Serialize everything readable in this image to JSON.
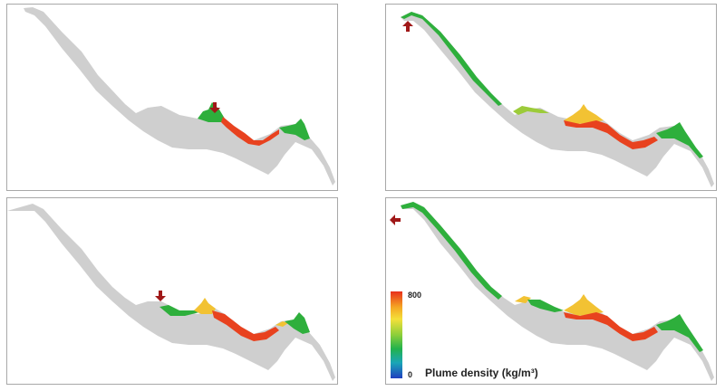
{
  "colors": {
    "terrain": "#cfcfcf",
    "frame": "#a8a8a8",
    "arrow": "#a01818",
    "plume_low": "#2aa84a",
    "plume_mid": "#f2d233",
    "plume_high": "#e8421f"
  },
  "panels": [
    {
      "name": "top-left",
      "arrow_direction": "down"
    },
    {
      "name": "top-right",
      "arrow_direction": "up"
    },
    {
      "name": "bottom-left",
      "arrow_direction": "down"
    },
    {
      "name": "bottom-right",
      "arrow_direction": "left"
    }
  ],
  "colorbar": {
    "title": "Plume density (kg/m³)",
    "max_label": "800",
    "min_label": "0"
  }
}
